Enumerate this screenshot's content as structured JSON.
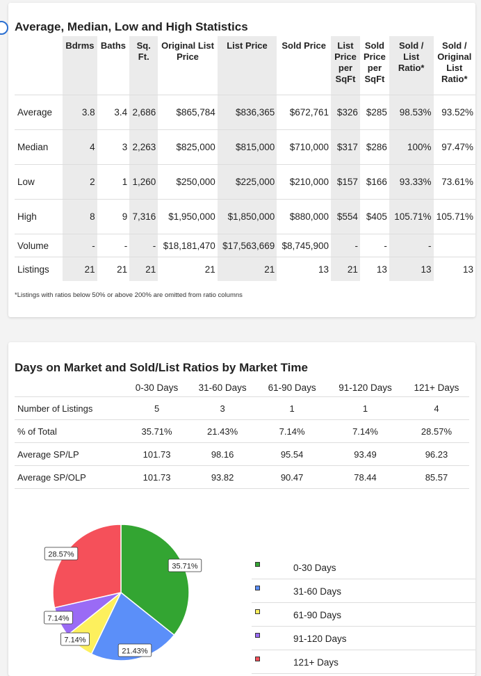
{
  "stats": {
    "title": "Average, Median, Low and High Statistics",
    "headers": [
      {
        "label": "",
        "grey": false,
        "w": 81
      },
      {
        "label": "Bdrms",
        "grey": true,
        "w": 47
      },
      {
        "label": "Baths",
        "grey": false,
        "w": 47
      },
      {
        "label": "Sq. Ft.",
        "grey": true,
        "w": 37
      },
      {
        "label": "Original List Price",
        "grey": false,
        "w": 86
      },
      {
        "label": "List Price",
        "grey": true,
        "w": 86
      },
      {
        "label": "Sold Price",
        "grey": false,
        "w": 78
      },
      {
        "label": "List Price per SqFt",
        "grey": true,
        "w": 42
      },
      {
        "label": "Sold Price per SqFt",
        "grey": false,
        "w": 42
      },
      {
        "label": "Sold / List Ratio*",
        "grey": true,
        "w": 64
      },
      {
        "label": "Sold / Original List Ratio*",
        "grey": false,
        "w": 56
      }
    ],
    "rows": [
      {
        "label": "Average",
        "cells": [
          "3.8",
          "3.4",
          "2,686",
          "$865,784",
          "$836,365",
          "$672,761",
          "$326",
          "$285",
          "98.53%",
          "93.52%"
        ]
      },
      {
        "label": "Median",
        "cells": [
          "4",
          "3",
          "2,263",
          "$825,000",
          "$815,000",
          "$710,000",
          "$317",
          "$286",
          "100%",
          "97.47%"
        ]
      },
      {
        "label": "Low",
        "cells": [
          "2",
          "1",
          "1,260",
          "$250,000",
          "$225,000",
          "$210,000",
          "$157",
          "$166",
          "93.33%",
          "73.61%"
        ]
      },
      {
        "label": "High",
        "cells": [
          "8",
          "9",
          "7,316",
          "$1,950,000",
          "$1,850,000",
          "$880,000",
          "$554",
          "$405",
          "105.71%",
          "105.71%"
        ]
      },
      {
        "label": "Volume",
        "cells": [
          "-",
          "-",
          "-",
          "$18,181,470",
          "$17,563,669",
          "$8,745,900",
          "-",
          "-",
          "-",
          ""
        ]
      },
      {
        "label": "Listings",
        "cells": [
          "21",
          "21",
          "21",
          "21",
          "21",
          "13",
          "21",
          "13",
          "13",
          "13"
        ]
      }
    ],
    "note": "*Listings with ratios below 50% or above 200% are omitted from ratio columns"
  },
  "dom": {
    "title": "Days on Market and Sold/List Ratios by Market Time",
    "headers": [
      "",
      "0-30 Days",
      "31-60 Days",
      "61-90 Days",
      "91-120 Days",
      "121+ Days"
    ],
    "rows": [
      {
        "label": "Number of Listings",
        "cells": [
          "5",
          "3",
          "1",
          "1",
          "4"
        ]
      },
      {
        "label": "% of Total",
        "cells": [
          "35.71%",
          "21.43%",
          "7.14%",
          "7.14%",
          "28.57%"
        ]
      },
      {
        "label": "Average SP/LP",
        "cells": [
          "101.73",
          "98.16",
          "95.54",
          "93.49",
          "96.23"
        ]
      },
      {
        "label": "Average SP/OLP",
        "cells": [
          "101.73",
          "93.82",
          "90.47",
          "78.44",
          "85.57"
        ]
      }
    ]
  },
  "chart_data": {
    "type": "pie",
    "title": "",
    "categories": [
      "0-30 Days",
      "31-60 Days",
      "61-90 Days",
      "91-120 Days",
      "121+ Days"
    ],
    "values": [
      35.71,
      21.43,
      7.14,
      7.14,
      28.57
    ],
    "labels": [
      "35.71%",
      "21.43%",
      "7.14%",
      "7.14%",
      "28.57%"
    ],
    "colors": [
      "#33a532",
      "#5b8ff9",
      "#fdf05d",
      "#9a6bf5",
      "#f5505a"
    ],
    "legend": "right"
  }
}
